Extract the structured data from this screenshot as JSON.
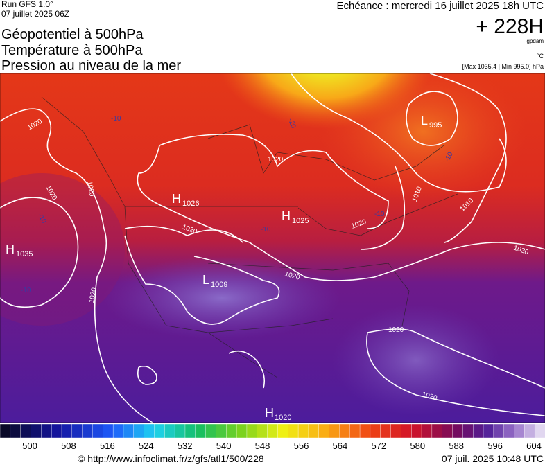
{
  "header": {
    "run": "Run GFS 1.0°",
    "run_date": "07 juillet 2025 06Z",
    "forecast": "Echéance : mercredi 16 juillet 2025 18h UTC",
    "lead": "+ 228H",
    "unit_gpdam": "gpdam",
    "unit_c": "°C",
    "range": "[Max 1035.4 | Min 995.0] hPa",
    "titles": [
      "Géopotentiel à 500hPa",
      "Température à 500hPa",
      "Pression au niveau de la mer"
    ]
  },
  "map": {
    "centers": [
      {
        "letter": "H",
        "value": "1035"
      },
      {
        "letter": "H",
        "value": "1026"
      },
      {
        "letter": "H",
        "value": "1025"
      },
      {
        "letter": "L",
        "value": "1009"
      },
      {
        "letter": "L",
        "value": "995"
      },
      {
        "letter": "H",
        "value": "1020"
      }
    ],
    "isobar_labels": [
      "1020",
      "1020",
      "1020",
      "1020",
      "1020",
      "1020",
      "1020",
      "1020",
      "1020",
      "1020",
      "1020",
      "1010",
      "1010"
    ],
    "isotherm_labels": [
      "-10",
      "-20",
      "-10",
      "-10",
      "-10",
      "-10",
      "-10"
    ]
  },
  "colorbar": {
    "labels": [
      500,
      508,
      516,
      524,
      532,
      540,
      548,
      556,
      564,
      572,
      580,
      588,
      596,
      604
    ]
  },
  "footer": {
    "source": "© http://www.infoclimat.fr/z/gfs/atl1/500/228",
    "timestamp": "07 juil. 2025 10:48 UTC"
  }
}
